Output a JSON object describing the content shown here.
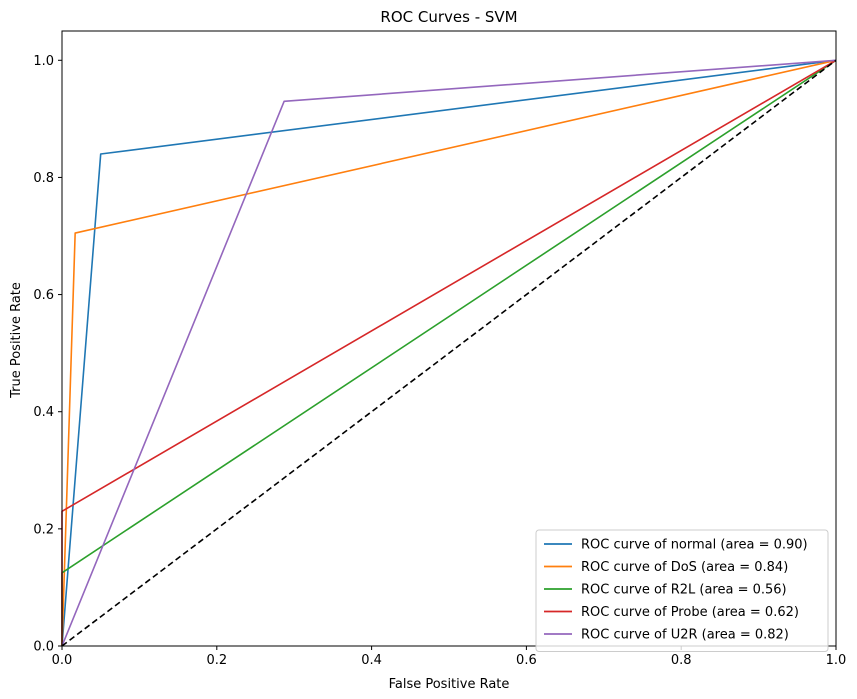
{
  "chart_data": {
    "type": "line",
    "title": "ROC Curves - SVM",
    "xlabel": "False Positive Rate",
    "ylabel": "True Positive Rate",
    "xlim": [
      0.0,
      1.0
    ],
    "ylim": [
      0.0,
      1.05
    ],
    "xticks": [
      "0.0",
      "0.2",
      "0.4",
      "0.6",
      "0.8",
      "1.0"
    ],
    "yticks": [
      "0.0",
      "0.2",
      "0.4",
      "0.6",
      "0.8",
      "1.0"
    ],
    "grid": false,
    "legend_position": "lower-right",
    "series": [
      {
        "name": "ROC curve of normal (area = 0.90)",
        "color": "#1f77b4",
        "x": [
          0.0,
          0.05,
          1.0
        ],
        "y": [
          0.0,
          0.84,
          1.0
        ]
      },
      {
        "name": "ROC curve of DoS (area = 0.84)",
        "color": "#ff7f0e",
        "x": [
          0.0,
          0.017,
          1.0
        ],
        "y": [
          0.0,
          0.705,
          1.0
        ]
      },
      {
        "name": "ROC curve of R2L (area = 0.56)",
        "color": "#2ca02c",
        "x": [
          0.0,
          0.0,
          1.0
        ],
        "y": [
          0.0,
          0.125,
          1.0
        ]
      },
      {
        "name": "ROC curve of Probe (area = 0.62)",
        "color": "#d62728",
        "x": [
          0.0,
          0.0,
          1.0
        ],
        "y": [
          0.0,
          0.23,
          1.0
        ]
      },
      {
        "name": "ROC curve of U2R (area = 0.82)",
        "color": "#9467bd",
        "x": [
          0.0,
          0.287,
          1.0
        ],
        "y": [
          0.0,
          0.93,
          1.0
        ]
      }
    ],
    "reference_line": {
      "x": [
        0.0,
        1.0
      ],
      "y": [
        0.0,
        1.0
      ],
      "color": "#000000",
      "style": "dashed"
    }
  }
}
